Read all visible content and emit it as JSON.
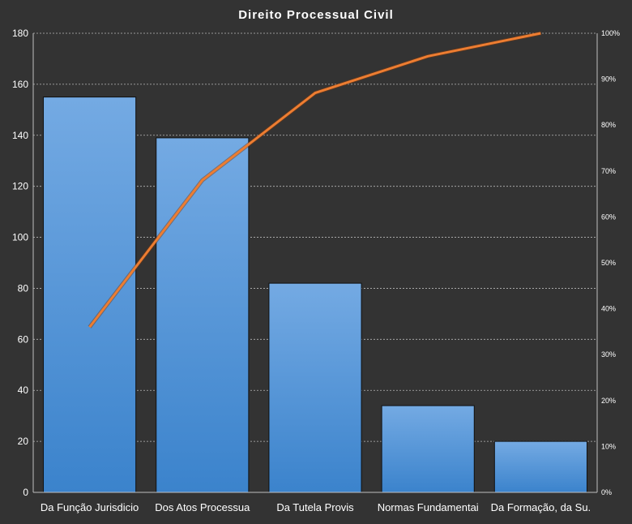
{
  "chart_data": {
    "type": "bar",
    "title": "Direito  Processual  Civil",
    "categories": [
      "Da Função Jurisdicio",
      "Dos Atos Processua",
      "Da Tutela Provis",
      "Normas Fundamentai",
      "Da Formação, da Su."
    ],
    "values": [
      155,
      139,
      82,
      34,
      20
    ],
    "cumulative_percent": [
      36,
      68,
      87,
      95,
      100
    ],
    "ylim": [
      0,
      180
    ],
    "yticks": [
      0,
      20,
      40,
      60,
      80,
      100,
      120,
      140,
      160,
      180
    ],
    "y2lim": [
      0,
      100
    ],
    "y2ticks": [
      "0%",
      "10%",
      "20%",
      "30%",
      "40%",
      "50%",
      "60%",
      "70%",
      "80%",
      "90%",
      "100%"
    ],
    "grid": true,
    "legend": "none",
    "colors": {
      "background": "#333333",
      "bar_top": "#74aae3",
      "bar_bottom": "#3b83cc",
      "bar_edge": "#111111",
      "line": "#ed7d31"
    }
  }
}
